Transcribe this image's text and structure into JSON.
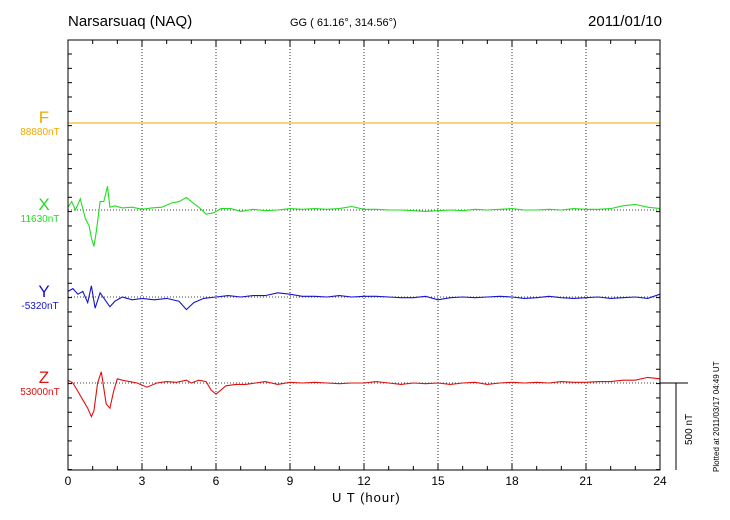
{
  "header": {
    "station": "Narsarsuaq (NAQ)",
    "coords": "GG ( 61.16°, 314.56°)",
    "date": "2011/01/10",
    "plotted": "Plotted at 2011/03/17 04:49 UT"
  },
  "colors": {
    "F": "#f0a800",
    "X": "#22dd22",
    "Y": "#1515cc",
    "Z": "#e01010",
    "axis": "#000000"
  },
  "chart_data": {
    "type": "line",
    "xlabel": "U T (hour)",
    "xlim": [
      0,
      24
    ],
    "xticks": [
      "0",
      "3",
      "6",
      "9",
      "12",
      "15",
      "18",
      "21",
      "24"
    ],
    "scale_bar_label": "500 nT",
    "grid": "vertical dotted every 3 hours",
    "series": [
      {
        "name": "F",
        "baseline_label": "88880nT",
        "x": [
          0,
          24
        ],
        "values": [
          0,
          0
        ]
      },
      {
        "name": "X",
        "baseline_label": "11630nT",
        "x": [
          0,
          0.15,
          0.3,
          0.5,
          0.7,
          0.85,
          0.95,
          1.05,
          1.15,
          1.3,
          1.45,
          1.6,
          1.7,
          1.9,
          2.2,
          2.6,
          3.0,
          3.4,
          3.8,
          4.2,
          4.5,
          4.8,
          5.0,
          5.3,
          5.6,
          5.9,
          6.2,
          6.6,
          7.0,
          7.5,
          8.0,
          8.5,
          9.0,
          9.5,
          10.0,
          10.5,
          11.0,
          11.5,
          12.0,
          12.5,
          13.0,
          13.5,
          14.0,
          14.5,
          15.0,
          15.5,
          16.0,
          16.5,
          17.0,
          17.5,
          18.0,
          18.5,
          19.0,
          19.5,
          20.0,
          20.5,
          21.0,
          21.5,
          22.0,
          22.5,
          23.0,
          23.5,
          24.0
        ],
        "values": [
          20,
          60,
          0,
          80,
          -60,
          -110,
          -200,
          -260,
          -150,
          60,
          60,
          170,
          20,
          30,
          15,
          20,
          5,
          15,
          20,
          50,
          60,
          90,
          60,
          20,
          -30,
          -20,
          10,
          10,
          -10,
          5,
          -5,
          0,
          10,
          5,
          10,
          5,
          10,
          25,
          5,
          5,
          0,
          0,
          -5,
          -10,
          -5,
          0,
          -5,
          5,
          0,
          5,
          10,
          0,
          0,
          5,
          0,
          10,
          5,
          5,
          10,
          30,
          40,
          20,
          10
        ]
      },
      {
        "name": "Y",
        "baseline_label": "-5320nT",
        "x": [
          0,
          0.2,
          0.4,
          0.6,
          0.8,
          0.95,
          1.1,
          1.3,
          1.5,
          1.7,
          1.9,
          2.2,
          2.6,
          3.0,
          3.5,
          4.0,
          4.5,
          4.8,
          5.1,
          5.5,
          6.0,
          6.5,
          7.0,
          7.5,
          8.0,
          8.5,
          9.0,
          9.5,
          10.0,
          10.5,
          11.0,
          11.5,
          12.0,
          12.5,
          13.0,
          13.5,
          14.0,
          14.5,
          15.0,
          15.5,
          16.0,
          16.5,
          17.0,
          17.5,
          18.0,
          18.5,
          19.0,
          19.5,
          20.0,
          20.5,
          21.0,
          21.5,
          22.0,
          22.5,
          23.0,
          23.5,
          24.0
        ],
        "values": [
          40,
          60,
          20,
          40,
          -40,
          80,
          -80,
          30,
          -20,
          -70,
          -30,
          0,
          -20,
          -10,
          -20,
          -10,
          -30,
          -90,
          -40,
          -10,
          0,
          10,
          0,
          10,
          10,
          30,
          20,
          5,
          5,
          0,
          10,
          0,
          5,
          5,
          0,
          -5,
          -5,
          5,
          -20,
          -5,
          0,
          -5,
          0,
          5,
          0,
          -10,
          -5,
          5,
          -5,
          -10,
          -5,
          0,
          -10,
          -5,
          0,
          -10,
          20
        ]
      },
      {
        "name": "Z",
        "baseline_label": "53000nT",
        "x": [
          0,
          0.2,
          0.4,
          0.6,
          0.8,
          0.95,
          1.05,
          1.2,
          1.35,
          1.55,
          1.7,
          1.85,
          2.0,
          2.2,
          2.5,
          2.8,
          3.2,
          3.6,
          4.0,
          4.4,
          4.8,
          5.0,
          5.3,
          5.6,
          5.8,
          6.0,
          6.4,
          6.8,
          7.2,
          7.6,
          8.0,
          8.5,
          9.0,
          9.5,
          10.0,
          10.5,
          11.0,
          11.5,
          12.0,
          12.5,
          13.0,
          13.5,
          14.0,
          14.5,
          15.0,
          15.5,
          16.0,
          16.5,
          17.0,
          17.5,
          18.0,
          18.5,
          19.0,
          19.5,
          20.0,
          20.5,
          21.0,
          21.5,
          22.0,
          22.5,
          23.0,
          23.5,
          24.0
        ],
        "values": [
          20,
          0,
          -60,
          -120,
          -180,
          -240,
          -200,
          0,
          80,
          -150,
          -180,
          -60,
          30,
          20,
          10,
          0,
          -30,
          0,
          10,
          5,
          20,
          0,
          20,
          10,
          -50,
          -80,
          -20,
          -10,
          -10,
          0,
          10,
          -10,
          5,
          0,
          5,
          0,
          -5,
          0,
          0,
          10,
          0,
          -10,
          0,
          -5,
          0,
          -10,
          0,
          5,
          -10,
          0,
          5,
          0,
          5,
          0,
          10,
          5,
          5,
          10,
          10,
          20,
          20,
          40,
          30
        ]
      }
    ]
  }
}
